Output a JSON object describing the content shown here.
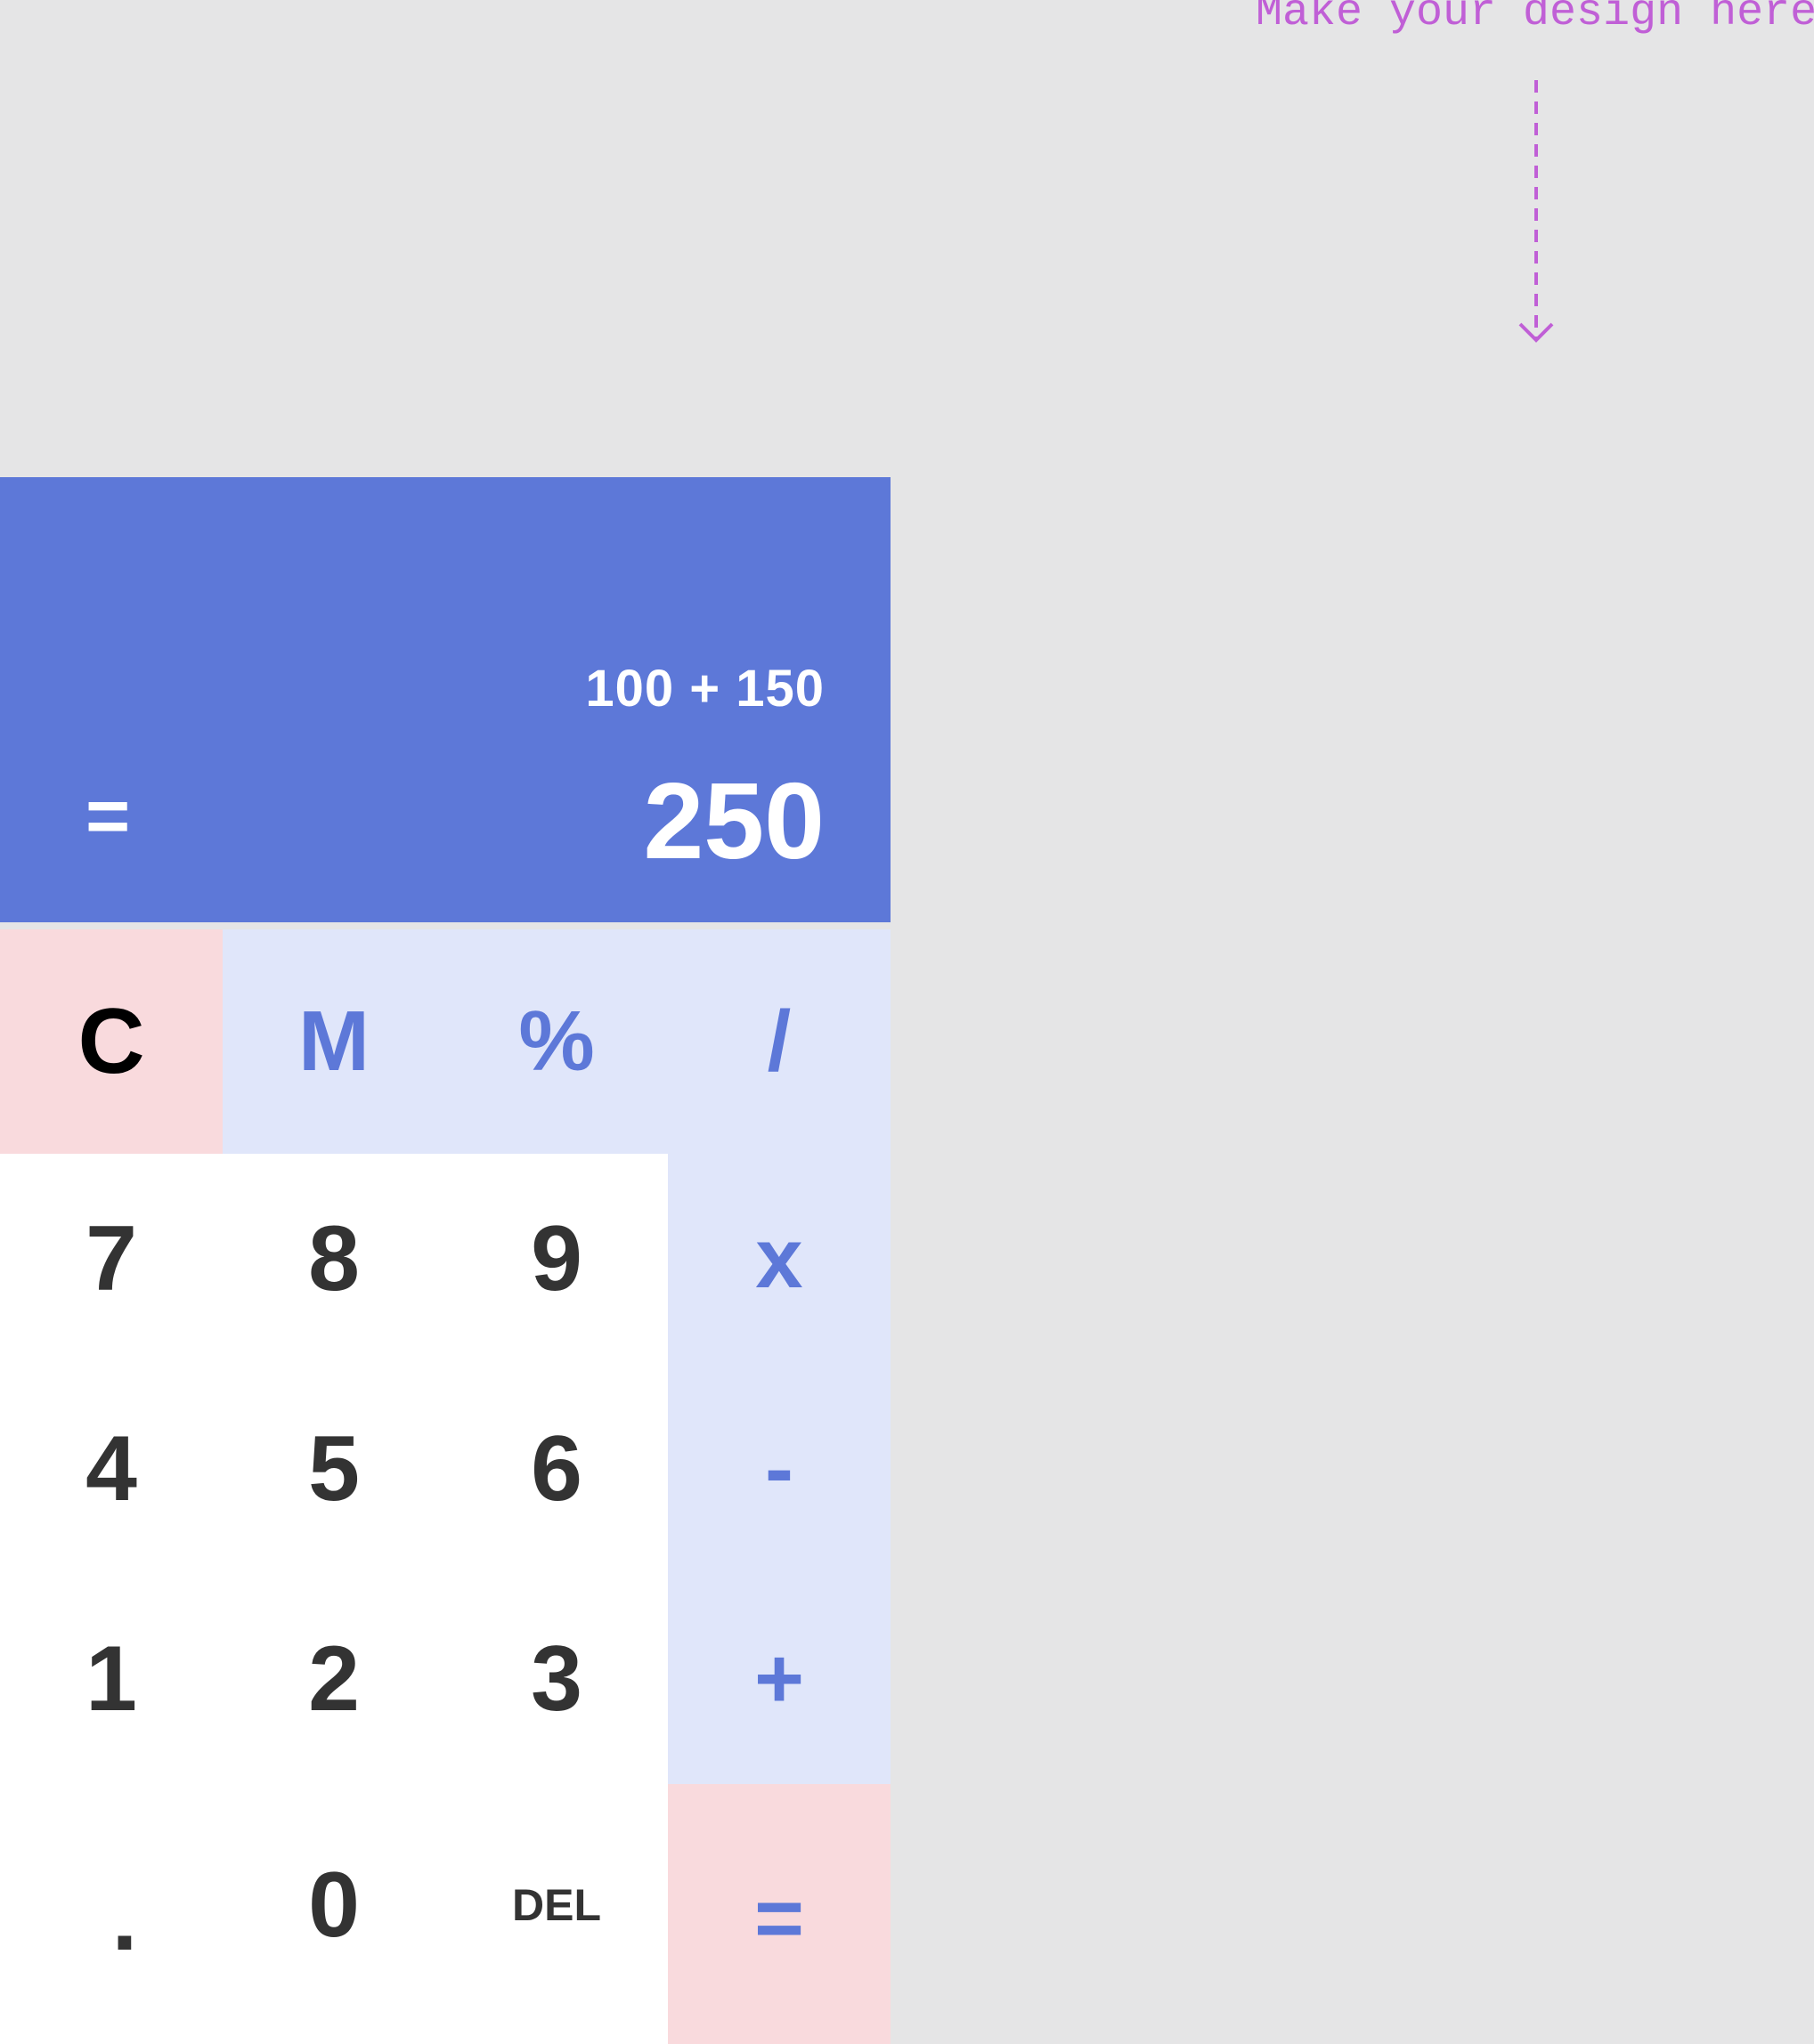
{
  "hint": {
    "text": "Make your design here"
  },
  "display": {
    "expression": "100 + 150",
    "result": "250",
    "equals_symbol": "="
  },
  "keys": {
    "clear": "C",
    "memory": "M",
    "percent": "%",
    "divide": "/",
    "multiply": "x",
    "subtract": "-",
    "add": "+",
    "equals": "=",
    "n7": "7",
    "n8": "8",
    "n9": "9",
    "n4": "4",
    "n5": "5",
    "n6": "6",
    "n1": "1",
    "n2": "2",
    "n3": "3",
    "dot": ".",
    "n0": "0",
    "del": "DEL"
  },
  "colors": {
    "page_background": "#e5e5e6",
    "display_background": "#5d78d8",
    "operator_background": "#e0e6fa",
    "accent_background": "#f9dadd",
    "number_background": "#ffffff",
    "operator_text": "#5d78d8",
    "number_text": "#333333",
    "hint_text": "#c05fd6"
  },
  "icons": {
    "hint_arrow": "dashed-arrow-down-icon"
  }
}
